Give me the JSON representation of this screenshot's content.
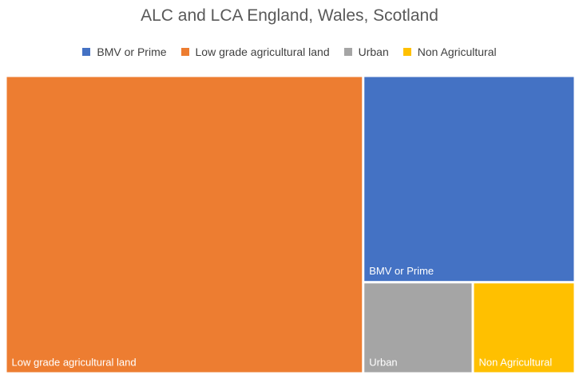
{
  "chart_data": {
    "type": "treemap",
    "title": "ALC and LCA England, Wales, Scotland",
    "legend_position": "top",
    "categories": [
      "Low grade agricultural land",
      "BMV or Prime",
      "Urban",
      "Non Agricultural"
    ],
    "values": [
      62.8,
      25.8,
      5.9,
      5.5
    ],
    "colors": [
      "#ED7D31",
      "#4472C4",
      "#A5A5A5",
      "#FFC000"
    ],
    "legend": [
      "BMV or Prime",
      "Low grade agricultural land",
      "Urban",
      "Non Agricultural"
    ],
    "legend_colors": [
      "#4472C4",
      "#ED7D31",
      "#A5A5A5",
      "#FFC000"
    ]
  }
}
